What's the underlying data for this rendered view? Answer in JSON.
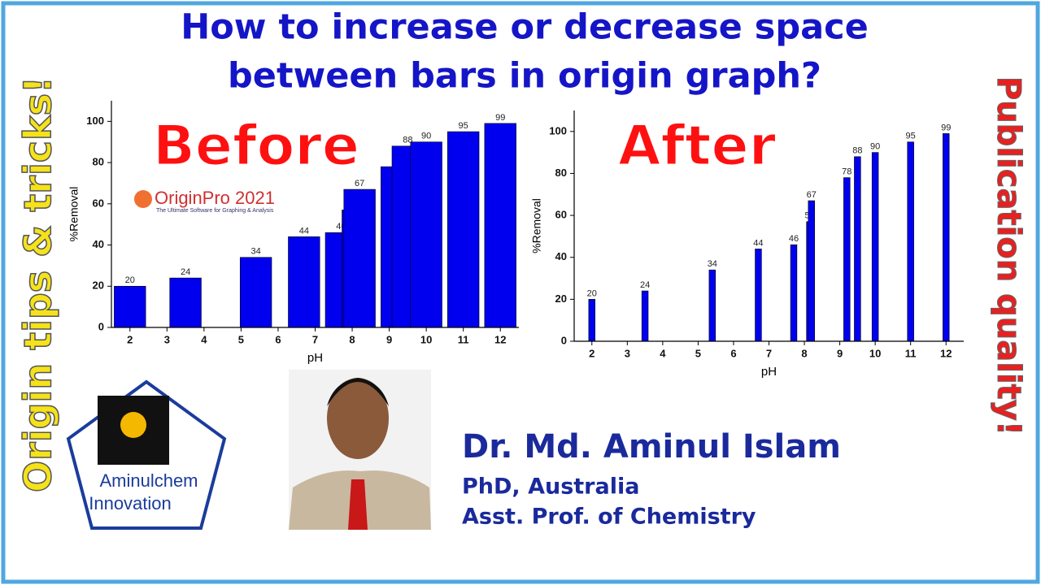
{
  "header": {
    "title_line1": "How to increase or decrease space",
    "title_line2": "between bars in origin graph?"
  },
  "side": {
    "left": "Origin tips & tricks!",
    "right": "Publication quality!"
  },
  "logo": {
    "name": "OriginPro 2021",
    "tagline": "The Ultimate Software for Graphing & Analysis"
  },
  "brand": {
    "line1": "Aminulchem",
    "line2": "Innovation"
  },
  "author": {
    "name": "Dr. Md. Aminul Islam",
    "degree": "PhD, Australia",
    "position": "Asst. Prof. of Chemistry"
  },
  "chart_data": [
    {
      "type": "bar",
      "title": "Before",
      "x_label": "pH",
      "y_label": "%Removal",
      "x": [
        2,
        3.5,
        5.4,
        6.7,
        7.7,
        8.15,
        8.2,
        9.2,
        9.5,
        10,
        11,
        12
      ],
      "values": [
        20,
        24,
        34,
        44,
        46,
        57,
        67,
        78,
        88,
        90,
        95,
        99
      ],
      "color": "#0000ee",
      "bar_width": 0.85,
      "xlim": [
        1.5,
        12.5
      ],
      "xticks": [
        2,
        3,
        4,
        5,
        6,
        7,
        8,
        9,
        10,
        11,
        12
      ],
      "ylim": [
        0,
        110
      ],
      "yticks": [
        0,
        20,
        40,
        60,
        80,
        100
      ]
    },
    {
      "type": "bar",
      "title": "After",
      "x_label": "pH",
      "y_label": "%Removal",
      "x": [
        2,
        3.5,
        5.4,
        6.7,
        7.7,
        8.15,
        8.2,
        9.2,
        9.5,
        10,
        11,
        12
      ],
      "values": [
        20,
        24,
        34,
        44,
        46,
        57,
        67,
        78,
        88,
        90,
        95,
        99
      ],
      "color": "#0000ee",
      "bar_width": 0.18,
      "xlim": [
        1.5,
        12.5
      ],
      "xticks": [
        2,
        3,
        4,
        5,
        6,
        7,
        8,
        9,
        10,
        11,
        12
      ],
      "ylim": [
        0,
        110
      ],
      "yticks": [
        0,
        20,
        40,
        60,
        80,
        100
      ]
    }
  ]
}
